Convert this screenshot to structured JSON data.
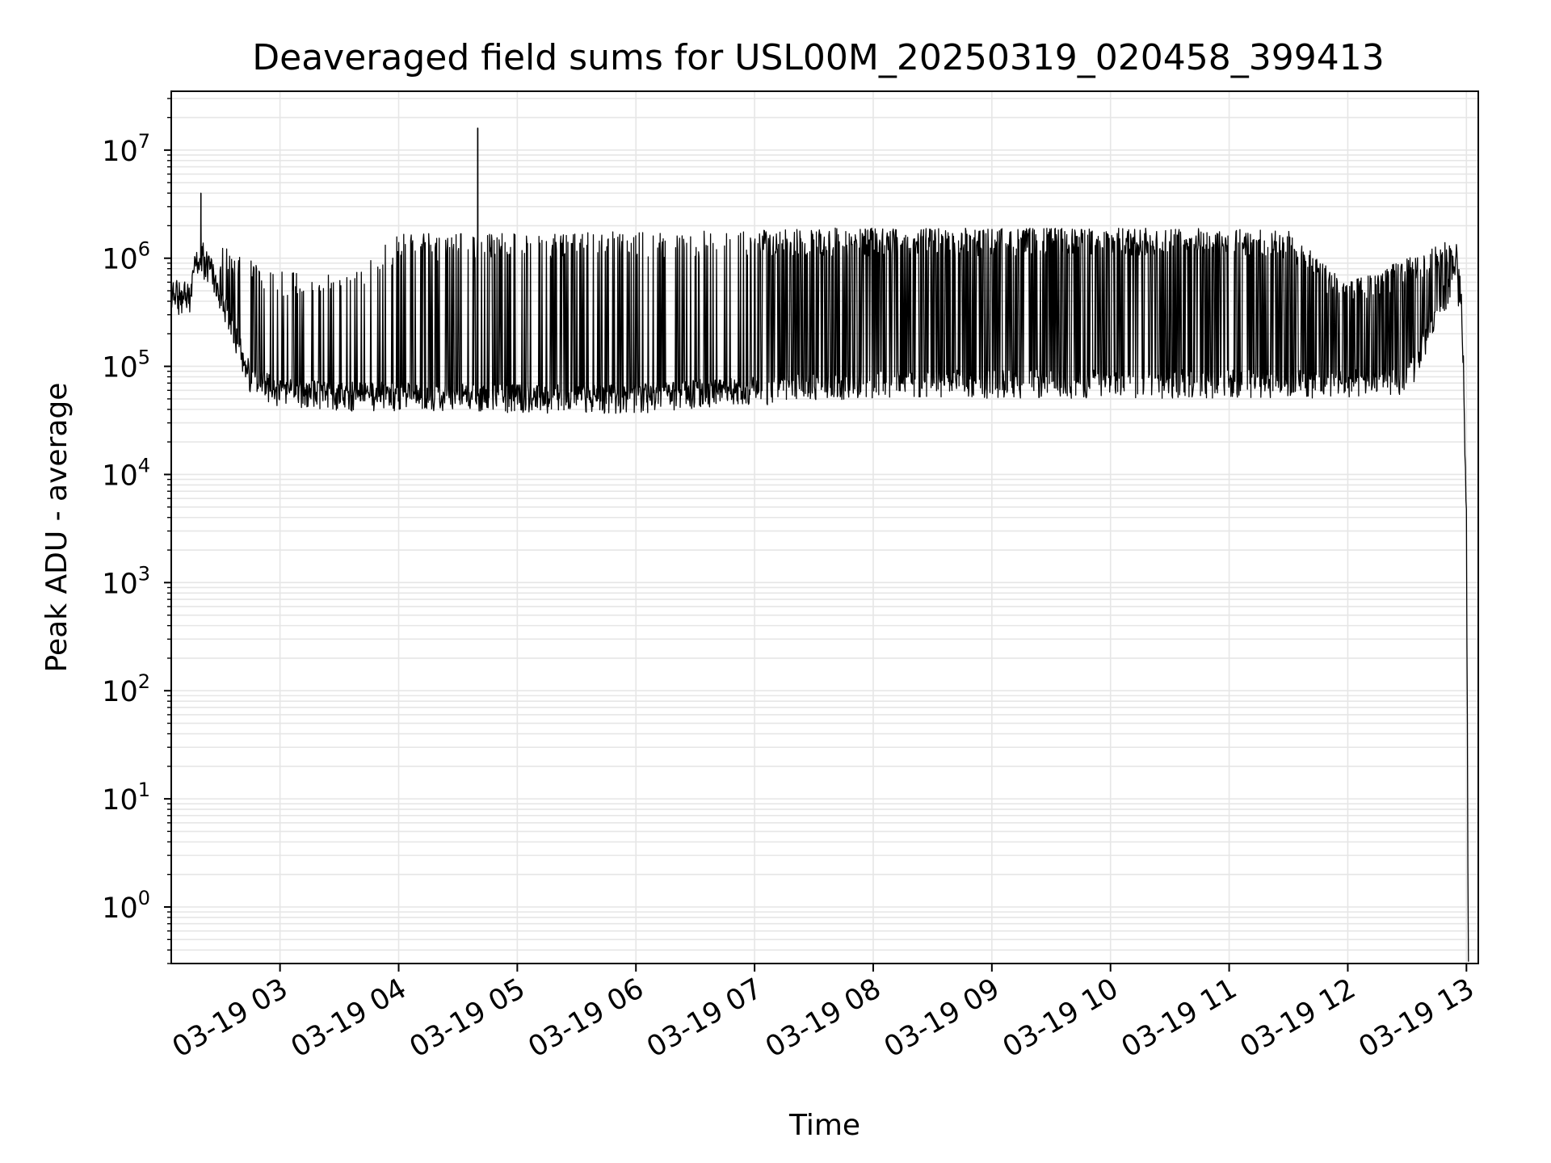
{
  "chart_data": {
    "type": "line",
    "title": "Deaveraged field sums for USL00M_20250319_020458_399413",
    "xlabel": "Time",
    "ylabel": "Peak ADU - average",
    "yscale": "log",
    "grid": true,
    "legend": "none",
    "line_color": "#000000",
    "grid_color": "#e6e6e6",
    "x_ticks": [
      "03-19 03",
      "03-19 04",
      "03-19 05",
      "03-19 06",
      "03-19 07",
      "03-19 08",
      "03-19 09",
      "03-19 10",
      "03-19 11",
      "03-19 12",
      "03-19 13"
    ],
    "y_ticks": [
      {
        "base": "10",
        "exp": "0"
      },
      {
        "base": "10",
        "exp": "1"
      },
      {
        "base": "10",
        "exp": "2"
      },
      {
        "base": "10",
        "exp": "3"
      },
      {
        "base": "10",
        "exp": "4"
      },
      {
        "base": "10",
        "exp": "5"
      },
      {
        "base": "10",
        "exp": "6"
      },
      {
        "base": "10",
        "exp": "7"
      }
    ],
    "xlim": [
      "2025-03-19 02:05",
      "2025-03-19 13:06"
    ],
    "ylim": [
      0.3,
      35000000
    ],
    "series": [
      {
        "envelope": {
          "x": [
            "2025-03-19 02:05",
            "2025-03-19 02:15",
            "2025-03-19 02:17",
            "2025-03-19 02:25",
            "2025-03-19 02:35",
            "2025-03-19 02:45",
            "2025-03-19 03:00",
            "2025-03-19 03:30",
            "2025-03-19 04:00",
            "2025-03-19 05:00",
            "2025-03-19 06:00",
            "2025-03-19 06:30",
            "2025-03-19 07:00",
            "2025-03-19 08:00",
            "2025-03-19 09:00",
            "2025-03-19 10:00",
            "2025-03-19 11:00",
            "2025-03-19 11:30",
            "2025-03-19 11:45",
            "2025-03-19 11:55",
            "2025-03-19 12:00",
            "2025-03-19 12:30",
            "2025-03-19 12:50",
            "2025-03-19 12:55",
            "2025-03-19 12:58",
            "2025-03-19 13:00",
            "2025-03-19 13:01"
          ],
          "baseline": [
            500000,
            450000,
            900000,
            800000,
            250000,
            80000,
            60000,
            55000,
            55000,
            52000,
            52000,
            58000,
            62000,
            70000,
            72000,
            72000,
            72000,
            72000,
            72000,
            72000,
            72000,
            72000,
            500000,
            800000,
            200000,
            5000,
            0.3
          ],
          "peaks": [
            500000,
            500000,
            1500000,
            1300000,
            1200000,
            1000000,
            800000,
            700000,
            1700000,
            1700000,
            1800000,
            1800000,
            1900000,
            1900000,
            1900000,
            1900000,
            1900000,
            1800000,
            1000000,
            700000,
            600000,
            1000000,
            1500000,
            1500000,
            400000,
            5000,
            0.3
          ]
        },
        "spikes": [
          {
            "x": "2025-03-19 02:20",
            "y": 4000000
          },
          {
            "x": "2025-03-19 04:40",
            "y": 16000000
          }
        ]
      }
    ]
  }
}
